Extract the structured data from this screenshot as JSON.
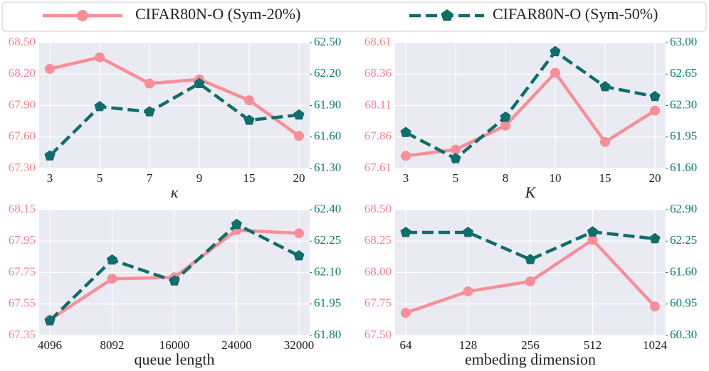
{
  "chart_data": [
    {
      "type": "line",
      "xlabel": "κ",
      "categories": [
        "3",
        "5",
        "7",
        "9",
        "15",
        "20"
      ],
      "series": [
        {
          "name": "CIFAR80N-O (Sym-20%)",
          "color": "#f98e98",
          "values": [
            68.25,
            68.36,
            68.11,
            68.15,
            67.95,
            67.61
          ]
        },
        {
          "name": "CIFAR80N-O (Sym-50%)",
          "color": "#0f6e69",
          "axis": "y2",
          "values": [
            61.42,
            61.89,
            61.84,
            62.11,
            61.76,
            61.81
          ]
        }
      ],
      "ylim": [
        67.3,
        68.5
      ],
      "yticks": [
        {
          "value": 67.3,
          "label": "67.30"
        },
        {
          "value": 67.6,
          "label": "67.60"
        },
        {
          "value": 67.9,
          "label": "67.90"
        },
        {
          "value": 68.2,
          "label": "68.20"
        },
        {
          "value": 68.5,
          "label": "68.50"
        }
      ],
      "y2lim": [
        61.3,
        62.5
      ],
      "y2ticks": [
        {
          "value": 61.3,
          "label": "61.30"
        },
        {
          "value": 61.6,
          "label": "61.60"
        },
        {
          "value": 61.9,
          "label": "61.90"
        },
        {
          "value": 62.2,
          "label": "62.20"
        },
        {
          "value": 62.5,
          "label": "62.50"
        }
      ],
      "grid": true
    },
    {
      "type": "line",
      "xlabel": "K",
      "categories": [
        "3",
        "5",
        "8",
        "10",
        "15",
        "20"
      ],
      "series": [
        {
          "name": "CIFAR80N-O (Sym-20%)",
          "color": "#f98e98",
          "values": [
            67.71,
            67.76,
            67.95,
            68.37,
            67.82,
            68.07
          ]
        },
        {
          "name": "CIFAR80N-O (Sym-50%)",
          "color": "#0f6e69",
          "axis": "y2",
          "values": [
            62.0,
            61.71,
            62.17,
            62.9,
            62.51,
            62.4
          ]
        }
      ],
      "ylim": [
        67.61,
        68.61
      ],
      "yticks": [
        67.61,
        67.86,
        68.11,
        68.36,
        68.61
      ],
      "y2lim": [
        61.6,
        63.0
      ],
      "y2ticks": [
        {
          "value": 61.6,
          "label": "61.60"
        },
        {
          "value": 61.95,
          "label": "61.95"
        },
        {
          "value": 62.3,
          "label": "62.30"
        },
        {
          "value": 62.65,
          "label": "62.65"
        },
        {
          "value": 63.0,
          "label": "63.00"
        }
      ],
      "grid": true
    },
    {
      "type": "line",
      "xlabel": "queue length",
      "categories": [
        "4096",
        "8092",
        "16000",
        "24000",
        "32000"
      ],
      "series": [
        {
          "name": "CIFAR80N-O (Sym-20%)",
          "color": "#f98e98",
          "values": [
            67.45,
            67.71,
            67.72,
            68.02,
            68.0
          ]
        },
        {
          "name": "CIFAR80N-O (Sym-50%)",
          "color": "#0f6e69",
          "axis": "y2",
          "values": [
            61.87,
            62.16,
            62.06,
            62.33,
            62.18
          ]
        }
      ],
      "ylim": [
        67.35,
        68.15
      ],
      "yticks": [
        67.35,
        67.55,
        67.75,
        67.95,
        68.15
      ],
      "y2lim": [
        61.8,
        62.4
      ],
      "y2ticks": [
        {
          "value": 61.8,
          "label": "61.80"
        },
        61.95,
        {
          "value": 62.1,
          "label": "62.10"
        },
        62.25,
        {
          "value": 62.4,
          "label": "62.40"
        }
      ],
      "grid": true
    },
    {
      "type": "line",
      "xlabel": "embeding dimension",
      "categories": [
        "64",
        "128",
        "256",
        "512",
        "1024"
      ],
      "series": [
        {
          "name": "CIFAR80N-O (Sym-20%)",
          "color": "#f98e98",
          "values": [
            67.68,
            67.85,
            67.93,
            68.26,
            67.73
          ]
        },
        {
          "name": "CIFAR80N-O (Sym-50%)",
          "color": "#0f6e69",
          "axis": "y2",
          "values": [
            62.43,
            62.43,
            61.87,
            62.44,
            62.3
          ]
        }
      ],
      "ylim": [
        67.5,
        68.5
      ],
      "yticks": [
        {
          "value": 67.5,
          "label": "67.50"
        },
        67.75,
        {
          "value": 68.0,
          "label": "68.00"
        },
        68.25,
        {
          "value": 68.5,
          "label": "68.50"
        }
      ],
      "y2lim": [
        60.3,
        62.9
      ],
      "y2ticks": [
        {
          "value": 60.3,
          "label": "60.30"
        },
        60.95,
        {
          "value": 61.6,
          "label": "61.60"
        },
        62.25,
        {
          "value": 62.9,
          "label": "62.90"
        }
      ],
      "grid": true
    }
  ]
}
